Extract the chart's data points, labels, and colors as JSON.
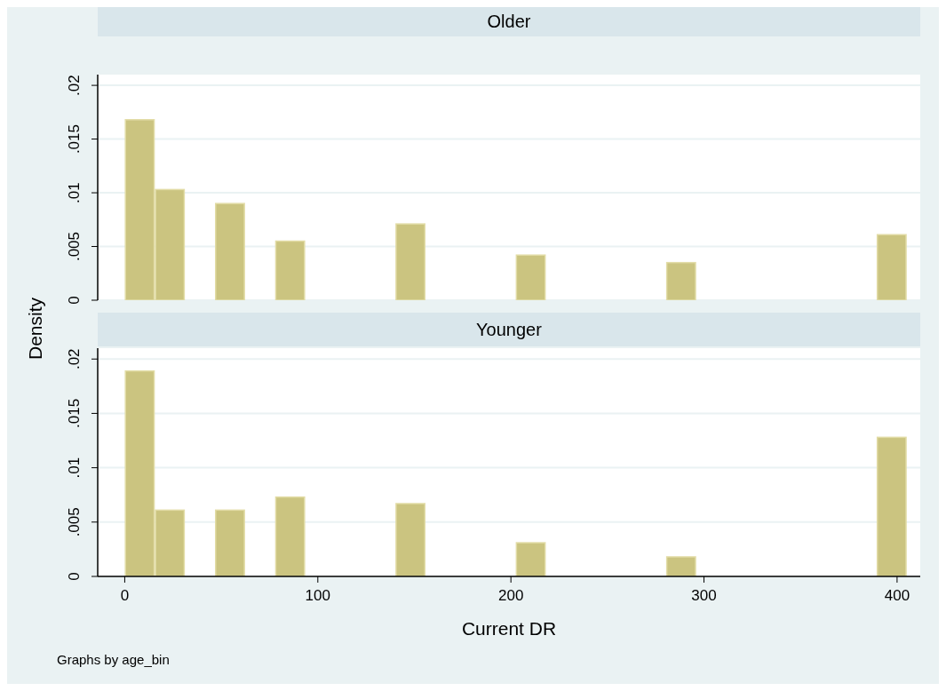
{
  "chart_data": [
    {
      "type": "histogram",
      "title": "Older",
      "ylabel": "Density",
      "bins": [
        0,
        15.58,
        31.15,
        46.73,
        62.31,
        77.88,
        93.46,
        109.04,
        124.62,
        140.19,
        155.77,
        171.35,
        186.92,
        202.5,
        218.08,
        233.65,
        249.23,
        264.81,
        280.38,
        295.96,
        311.54,
        327.12,
        342.69,
        358.27,
        373.85,
        389.42,
        405
      ],
      "values": [
        0.0168,
        0.0103,
        0,
        0.009,
        0,
        0.0055,
        0,
        0,
        0,
        0.0071,
        0,
        0,
        0,
        0.0042,
        0,
        0,
        0,
        0,
        0.0035,
        0,
        0,
        0,
        0,
        0,
        0,
        0.0061
      ],
      "color": "#cbc480",
      "xlim": [
        -14,
        412
      ],
      "ylim": [
        0,
        0.021
      ],
      "yticks": [
        {
          "value": 0,
          "label": "0"
        },
        {
          "value": 0.005,
          "label": ".005"
        },
        {
          "value": 0.01,
          "label": ".01"
        },
        {
          "value": 0.015,
          "label": ".015"
        },
        {
          "value": 0.02,
          "label": ".02"
        }
      ],
      "grid": "y",
      "tick_labels": "y"
    },
    {
      "type": "histogram",
      "title": "Younger",
      "xlabel": "Current DR",
      "annotations": [
        "Graphs by age_bin"
      ],
      "bins": [
        0,
        15.58,
        31.15,
        46.73,
        62.31,
        77.88,
        93.46,
        109.04,
        124.62,
        140.19,
        155.77,
        171.35,
        186.92,
        202.5,
        218.08,
        233.65,
        249.23,
        264.81,
        280.38,
        295.96,
        311.54,
        327.12,
        342.69,
        358.27,
        373.85,
        389.42,
        405
      ],
      "values": [
        0.0189,
        0.0061,
        0,
        0.0061,
        0,
        0.0073,
        0,
        0,
        0,
        0.0067,
        0,
        0,
        0,
        0.0031,
        0,
        0,
        0,
        0,
        0.0018,
        0,
        0,
        0,
        0,
        0,
        0,
        0.0128
      ],
      "color": "#cbc480",
      "xlim": [
        -14,
        412
      ],
      "ylim": [
        0,
        0.021
      ],
      "xticks": [
        0,
        100,
        200,
        300,
        400
      ],
      "yticks": [
        {
          "value": 0,
          "label": "0"
        },
        {
          "value": 0.005,
          "label": ".005"
        },
        {
          "value": 0.01,
          "label": ".01"
        },
        {
          "value": 0.015,
          "label": ".015"
        },
        {
          "value": 0.02,
          "label": ".02"
        }
      ],
      "grid": "y"
    }
  ]
}
